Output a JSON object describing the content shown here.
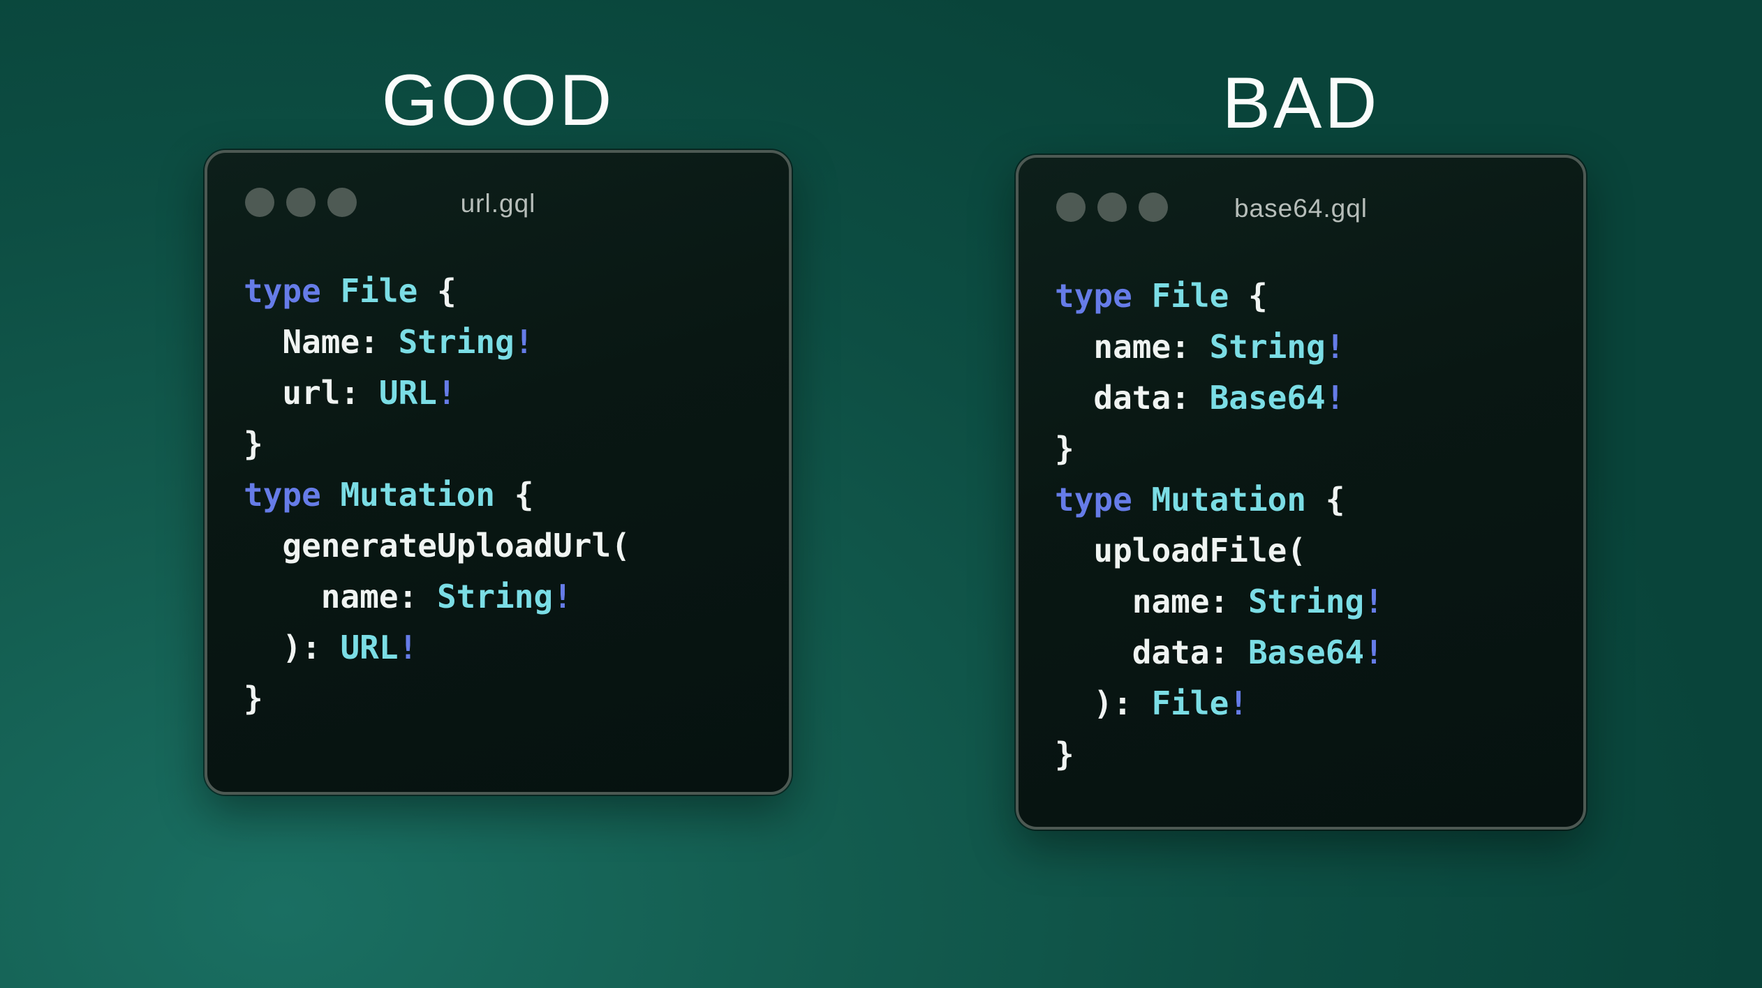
{
  "colors": {
    "bg-center": "#1a6f62",
    "bg-edge": "#09443a",
    "window-bg": "#081511",
    "window-border": "#4d5953",
    "dot": "#4e5a54",
    "filename": "#b6bdb9",
    "heading": "#fafcfb",
    "kw": "#667ce8",
    "ty": "#7bdde5",
    "pl": "#f0f4f2"
  },
  "panels": [
    {
      "label": "GOOD",
      "filename": "url.gql",
      "traffic_dots": 3,
      "code": [
        [
          {
            "c": "kw",
            "t": "type"
          },
          {
            "c": "pl",
            "t": " "
          },
          {
            "c": "ty",
            "t": "File"
          },
          {
            "c": "pl",
            "t": " {"
          }
        ],
        [
          {
            "c": "pl",
            "t": "  Name: "
          },
          {
            "c": "ty",
            "t": "String"
          },
          {
            "c": "kw",
            "t": "!"
          }
        ],
        [
          {
            "c": "pl",
            "t": "  url: "
          },
          {
            "c": "ty",
            "t": "URL"
          },
          {
            "c": "kw",
            "t": "!"
          }
        ],
        [
          {
            "c": "pl",
            "t": "}"
          }
        ],
        [
          {
            "c": "kw",
            "t": "type"
          },
          {
            "c": "pl",
            "t": " "
          },
          {
            "c": "ty",
            "t": "Mutation"
          },
          {
            "c": "pl",
            "t": " {"
          }
        ],
        [
          {
            "c": "pl",
            "t": "  generateUploadUrl("
          }
        ],
        [
          {
            "c": "pl",
            "t": "    name: "
          },
          {
            "c": "ty",
            "t": "String"
          },
          {
            "c": "kw",
            "t": "!"
          }
        ],
        [
          {
            "c": "pl",
            "t": "  ): "
          },
          {
            "c": "ty",
            "t": "URL"
          },
          {
            "c": "kw",
            "t": "!"
          }
        ],
        [
          {
            "c": "pl",
            "t": "}"
          }
        ]
      ]
    },
    {
      "label": "BAD",
      "filename": "base64.gql",
      "traffic_dots": 3,
      "code": [
        [
          {
            "c": "kw",
            "t": "type"
          },
          {
            "c": "pl",
            "t": " "
          },
          {
            "c": "ty",
            "t": "File"
          },
          {
            "c": "pl",
            "t": " {"
          }
        ],
        [
          {
            "c": "pl",
            "t": "  name: "
          },
          {
            "c": "ty",
            "t": "String"
          },
          {
            "c": "kw",
            "t": "!"
          }
        ],
        [
          {
            "c": "pl",
            "t": "  data: "
          },
          {
            "c": "ty",
            "t": "Base64"
          },
          {
            "c": "kw",
            "t": "!"
          }
        ],
        [
          {
            "c": "pl",
            "t": "}"
          }
        ],
        [
          {
            "c": "kw",
            "t": "type"
          },
          {
            "c": "pl",
            "t": " "
          },
          {
            "c": "ty",
            "t": "Mutation"
          },
          {
            "c": "pl",
            "t": " {"
          }
        ],
        [
          {
            "c": "pl",
            "t": "  uploadFile("
          }
        ],
        [
          {
            "c": "pl",
            "t": "    name: "
          },
          {
            "c": "ty",
            "t": "String"
          },
          {
            "c": "kw",
            "t": "!"
          }
        ],
        [
          {
            "c": "pl",
            "t": "    data: "
          },
          {
            "c": "ty",
            "t": "Base64"
          },
          {
            "c": "kw",
            "t": "!"
          }
        ],
        [
          {
            "c": "pl",
            "t": "  ): "
          },
          {
            "c": "ty",
            "t": "File"
          },
          {
            "c": "kw",
            "t": "!"
          }
        ],
        [
          {
            "c": "pl",
            "t": "}"
          }
        ]
      ]
    }
  ]
}
